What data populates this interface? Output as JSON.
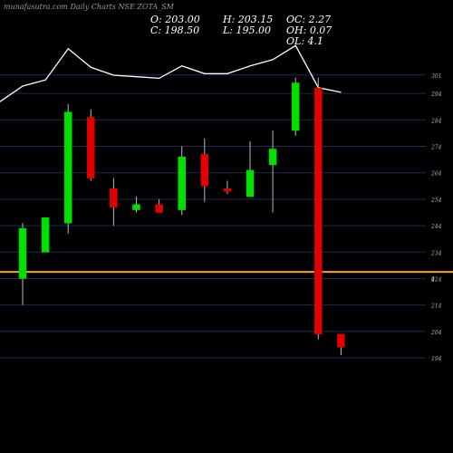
{
  "header": {
    "watermark": "munafasutra.com",
    "title": "Daily Charts NSE ZOTA_SM"
  },
  "ohlc": {
    "open": "O: 203.00",
    "close": "C: 198.50",
    "high": "H: 203.15",
    "low": "L: 195.00",
    "change": "OC: 2.27",
    "oh": "OH: 0.07",
    "ol": "OL: 4.1"
  },
  "colors": {
    "background": "#000000",
    "bullish": "#00e000",
    "bearish": "#e00000",
    "grid": "#1c2a5a",
    "line": "#ffffff",
    "marker": "#ffa500"
  },
  "chart_data": {
    "type": "candlestick",
    "title": "Daily Charts NSE ZOTA_SM",
    "ylim": [
      194,
      304
    ],
    "y_ticks": [
      301,
      294,
      284,
      274,
      264,
      254,
      244,
      234,
      224,
      214,
      204,
      194
    ],
    "y_tick_labels": [
      "301",
      "294",
      "284",
      "274",
      "264",
      "254",
      "244",
      "234",
      "224",
      "214",
      "204",
      "194"
    ],
    "highlight_level": 226.5,
    "highlight_label": "4",
    "candles": [
      {
        "open": 224,
        "high": 245,
        "low": 214,
        "close": 243,
        "dir": "up"
      },
      {
        "open": 234,
        "high": 247,
        "low": 234,
        "close": 247,
        "dir": "up"
      },
      {
        "open": 245,
        "high": 290,
        "low": 241,
        "close": 287,
        "dir": "up"
      },
      {
        "open": 285,
        "high": 288,
        "low": 261,
        "close": 262,
        "dir": "down"
      },
      {
        "open": 258,
        "high": 262,
        "low": 244,
        "close": 251,
        "dir": "down"
      },
      {
        "open": 250,
        "high": 255,
        "low": 249,
        "close": 252,
        "dir": "up"
      },
      {
        "open": 252,
        "high": 254,
        "low": 249,
        "close": 249,
        "dir": "down"
      },
      {
        "open": 250,
        "high": 274,
        "low": 248,
        "close": 270,
        "dir": "up"
      },
      {
        "open": 271,
        "high": 277,
        "low": 253,
        "close": 259,
        "dir": "down"
      },
      {
        "open": 258,
        "high": 261,
        "low": 256,
        "close": 257,
        "dir": "down"
      },
      {
        "open": 255,
        "high": 276,
        "low": 255,
        "close": 265,
        "dir": "up"
      },
      {
        "open": 267,
        "high": 280,
        "low": 249,
        "close": 273,
        "dir": "up"
      },
      {
        "open": 280,
        "high": 300,
        "low": 278,
        "close": 298,
        "dir": "up"
      },
      {
        "open": 296,
        "high": 300,
        "low": 201,
        "close": 203,
        "dir": "down"
      },
      {
        "open": 203,
        "high": 203,
        "low": 195,
        "close": 198,
        "dir": "down"
      }
    ],
    "volume_line": [
      0.08,
      0.18,
      0.22,
      0.42,
      0.3,
      0.25,
      0.24,
      0.23,
      0.31,
      0.26,
      0.26,
      0.31,
      0.35,
      0.44,
      0.17,
      0.14
    ]
  }
}
